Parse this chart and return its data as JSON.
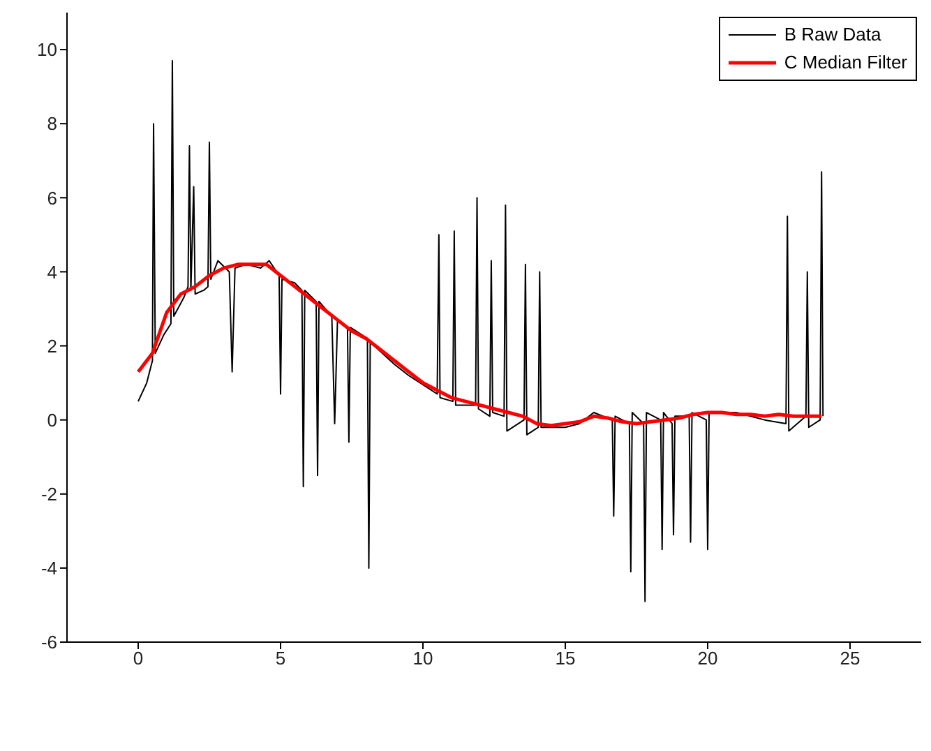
{
  "chart_data": {
    "type": "line",
    "xlim": [
      -2.5,
      27.5
    ],
    "xticks": [
      0,
      5,
      10,
      15,
      20,
      25
    ],
    "ylim": [
      -6,
      11
    ],
    "yticks": [
      -6,
      -4,
      -2,
      0,
      2,
      4,
      6,
      8,
      10
    ],
    "grid": false,
    "legend": "top right",
    "marker": "none",
    "line_style": "solid",
    "series": [
      {
        "name": "B Raw Data",
        "color": "#000000",
        "x": [
          0,
          0.3,
          0.5,
          0.54,
          0.6,
          0.9,
          1.15,
          1.2,
          1.25,
          1.6,
          1.75,
          1.8,
          1.85,
          1.95,
          2.0,
          2.3,
          2.45,
          2.5,
          2.55,
          2.8,
          3.2,
          3.3,
          3.4,
          3.8,
          4.3,
          4.6,
          4.95,
          5.0,
          5.05,
          5.5,
          5.75,
          5.8,
          5.85,
          6.25,
          6.3,
          6.35,
          6.8,
          6.9,
          7.0,
          7.35,
          7.4,
          7.45,
          8.05,
          8.1,
          8.15,
          9,
          9.5,
          10.5,
          10.56,
          10.6,
          11.05,
          11.1,
          11.15,
          11.85,
          11.9,
          11.95,
          12.35,
          12.4,
          12.45,
          12.85,
          12.9,
          12.95,
          13.55,
          13.6,
          13.65,
          14.05,
          14.1,
          14.15,
          15,
          15.5,
          16,
          16.65,
          16.7,
          16.75,
          17.25,
          17.3,
          17.35,
          17.75,
          17.8,
          17.85,
          18.35,
          18.4,
          18.45,
          18.75,
          18.8,
          18.85,
          19.35,
          19.4,
          19.45,
          19.95,
          20.0,
          20.05,
          21,
          22,
          22.75,
          22.8,
          22.85,
          23.45,
          23.5,
          23.55,
          23.95,
          24.0,
          24.05
        ],
        "values": [
          0.5,
          1.0,
          1.6,
          8.0,
          1.8,
          2.3,
          2.6,
          9.7,
          2.8,
          3.3,
          3.6,
          7.4,
          3.5,
          6.3,
          3.4,
          3.5,
          3.6,
          7.5,
          3.8,
          4.3,
          4.0,
          1.3,
          4.1,
          4.2,
          4.1,
          4.3,
          3.9,
          0.7,
          3.8,
          3.7,
          3.5,
          -1.8,
          3.5,
          3.2,
          -1.5,
          3.2,
          2.8,
          -0.1,
          2.7,
          2.5,
          -0.6,
          2.5,
          2.2,
          -4.0,
          2.1,
          1.5,
          1.2,
          0.7,
          5.0,
          0.6,
          0.5,
          5.1,
          0.4,
          0.4,
          6.0,
          0.3,
          0.1,
          4.3,
          0.2,
          0.1,
          5.8,
          -0.3,
          0.0,
          4.2,
          -0.4,
          -0.2,
          4.0,
          -0.2,
          -0.2,
          -0.1,
          0.2,
          0.0,
          -2.6,
          0.1,
          -0.1,
          -4.1,
          0.2,
          -0.1,
          -4.9,
          0.2,
          0.0,
          -3.5,
          0.2,
          -0.1,
          -3.1,
          0.1,
          0.1,
          -3.3,
          0.2,
          0.0,
          -3.5,
          0.2,
          0.2,
          0.0,
          -0.1,
          5.5,
          -0.3,
          0.1,
          4.0,
          -0.2,
          0.0,
          6.7,
          0.1
        ]
      },
      {
        "name": "C Median Filter",
        "color": "#ff0000",
        "x": [
          0,
          0.5,
          1,
          1.5,
          2,
          2.5,
          3,
          3.5,
          4,
          4.5,
          5,
          5.5,
          6,
          6.5,
          7,
          7.5,
          8,
          8.5,
          9,
          9.5,
          10,
          10.5,
          11,
          11.5,
          12,
          12.5,
          13,
          13.5,
          14,
          14.5,
          15,
          15.5,
          16,
          16.5,
          17,
          17.5,
          18,
          18.5,
          19,
          19.5,
          20,
          20.5,
          21,
          21.5,
          22,
          22.5,
          23,
          23.5,
          24
        ],
        "values": [
          1.3,
          1.8,
          2.9,
          3.4,
          3.6,
          3.9,
          4.1,
          4.2,
          4.2,
          4.2,
          3.9,
          3.6,
          3.3,
          3.0,
          2.7,
          2.4,
          2.2,
          1.9,
          1.6,
          1.3,
          1.0,
          0.8,
          0.6,
          0.5,
          0.4,
          0.3,
          0.2,
          0.1,
          -0.1,
          -0.15,
          -0.1,
          -0.05,
          0.1,
          0.05,
          -0.05,
          -0.1,
          -0.05,
          0.0,
          0.05,
          0.15,
          0.2,
          0.2,
          0.15,
          0.15,
          0.1,
          0.15,
          0.1,
          0.1,
          0.1
        ]
      }
    ]
  }
}
